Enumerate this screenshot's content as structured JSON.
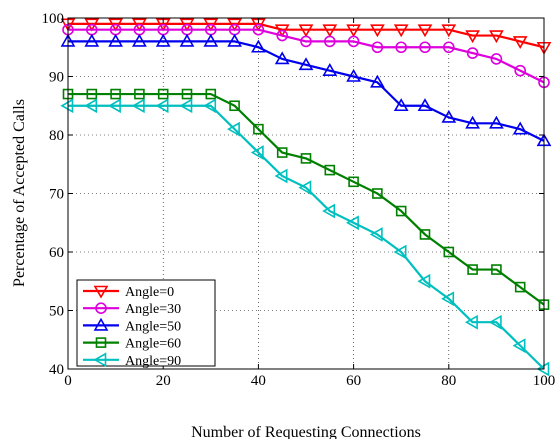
{
  "chart_data": {
    "type": "line",
    "xlabel": "Number of Requesting Connections",
    "ylabel": "Percentage of Accepted Calls",
    "xlim": [
      0,
      100
    ],
    "ylim": [
      40,
      100
    ],
    "xticks": [
      "0",
      "20",
      "40",
      "60",
      "80",
      "100"
    ],
    "yticks": [
      "40",
      "50",
      "60",
      "70",
      "80",
      "90",
      "100"
    ],
    "grid": "dotted",
    "legend_position": "bottom-left",
    "x": [
      0,
      5,
      10,
      15,
      20,
      25,
      30,
      35,
      40,
      45,
      50,
      55,
      60,
      65,
      70,
      75,
      80,
      85,
      90,
      95,
      100
    ],
    "series": [
      {
        "name": "Angle=0",
        "color": "#ff0000",
        "marker": "triangle-down",
        "values": [
          99,
          99,
          99,
          99,
          99,
          99,
          99,
          99,
          99,
          98,
          98,
          98,
          98,
          98,
          98,
          98,
          98,
          97,
          97,
          96,
          95
        ]
      },
      {
        "name": "Angle=30",
        "color": "#dd00dd",
        "marker": "circle",
        "values": [
          98,
          98,
          98,
          98,
          98,
          98,
          98,
          98,
          98,
          97,
          96,
          96,
          96,
          95,
          95,
          95,
          95,
          94,
          93,
          91,
          89
        ]
      },
      {
        "name": "Angle=50",
        "color": "#0000ee",
        "marker": "triangle-up",
        "values": [
          96,
          96,
          96,
          96,
          96,
          96,
          96,
          96,
          95,
          93,
          92,
          91,
          90,
          89,
          85,
          85,
          83,
          82,
          82,
          81,
          79
        ]
      },
      {
        "name": "Angle=60",
        "color": "#008000",
        "marker": "square",
        "values": [
          87,
          87,
          87,
          87,
          87,
          87,
          87,
          85,
          81,
          77,
          76,
          74,
          72,
          70,
          67,
          63,
          60,
          57,
          57,
          54,
          51
        ]
      },
      {
        "name": "Angle=90",
        "color": "#00bfbf",
        "marker": "triangle-left",
        "values": [
          85,
          85,
          85,
          85,
          85,
          85,
          85,
          81,
          77,
          73,
          71,
          67,
          65,
          63,
          60,
          55,
          52,
          48,
          48,
          44,
          40
        ]
      }
    ]
  }
}
